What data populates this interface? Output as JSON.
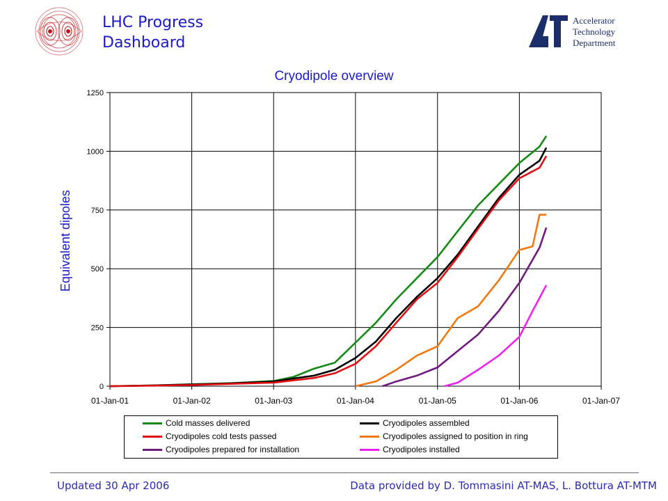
{
  "header": {
    "title_line1": "LHC Progress",
    "title_line2": "Dashboard",
    "dept_line1": "Accelerator",
    "dept_line2": "Technology",
    "dept_line3": "Department"
  },
  "footer": {
    "updated": "Updated 30 Apr 2006",
    "credits": "Data provided by  D. Tommasini  AT-MAS, L. Bottura AT-MTM"
  },
  "colors": {
    "title_blue": "#1a1acc",
    "green": "#138a13",
    "black": "#000000",
    "red": "#e01010",
    "orange": "#f07810",
    "purple": "#701a80",
    "magenta": "#ee22ee"
  },
  "chart_data": {
    "type": "line",
    "title": "Cryodipole overview",
    "ylabel": "Equivalent dipoles",
    "xlabel": "",
    "ylim": [
      0,
      1250
    ],
    "yticks": [
      0,
      250,
      500,
      750,
      1000,
      1250
    ],
    "xlim": [
      "2001-01-01",
      "2007-01-01"
    ],
    "xticks": [
      "01-Jan-01",
      "01-Jan-02",
      "01-Jan-03",
      "01-Jan-04",
      "01-Jan-05",
      "01-Jan-06",
      "01-Jan-07"
    ],
    "grid": true,
    "legend_position": "bottom",
    "series": [
      {
        "name": "Cold masses delivered",
        "color": "#138a13",
        "x": [
          "2001-01-01",
          "2001-07-01",
          "2002-01-01",
          "2002-07-01",
          "2003-01-01",
          "2003-04-01",
          "2003-07-01",
          "2003-10-01",
          "2004-01-01",
          "2004-04-01",
          "2004-07-01",
          "2004-10-01",
          "2005-01-01",
          "2005-04-01",
          "2005-07-01",
          "2005-10-01",
          "2006-01-01",
          "2006-04-01",
          "2006-05-01"
        ],
        "values": [
          0,
          3,
          8,
          13,
          22,
          40,
          75,
          100,
          185,
          270,
          370,
          460,
          550,
          660,
          770,
          860,
          950,
          1020,
          1065
        ]
      },
      {
        "name": "Cryodipoles assembled",
        "color": "#000000",
        "x": [
          "2001-01-01",
          "2001-07-01",
          "2002-01-01",
          "2002-07-01",
          "2003-01-01",
          "2003-04-01",
          "2003-07-01",
          "2003-10-01",
          "2004-01-01",
          "2004-04-01",
          "2004-07-01",
          "2004-10-01",
          "2005-01-01",
          "2005-04-01",
          "2005-07-01",
          "2005-10-01",
          "2006-01-01",
          "2006-04-01",
          "2006-05-01"
        ],
        "values": [
          0,
          3,
          7,
          12,
          20,
          33,
          45,
          70,
          120,
          190,
          290,
          380,
          460,
          560,
          680,
          800,
          900,
          960,
          1015
        ]
      },
      {
        "name": "Cryodipoles cold tests passed",
        "color": "#e01010",
        "x": [
          "2001-01-01",
          "2001-07-01",
          "2002-01-01",
          "2002-07-01",
          "2003-01-01",
          "2003-04-01",
          "2003-07-01",
          "2003-10-01",
          "2004-01-01",
          "2004-04-01",
          "2004-07-01",
          "2004-10-01",
          "2005-01-01",
          "2005-04-01",
          "2005-07-01",
          "2005-10-01",
          "2006-01-01",
          "2006-04-01",
          "2006-05-01"
        ],
        "values": [
          0,
          2,
          5,
          10,
          15,
          25,
          35,
          55,
          95,
          170,
          270,
          370,
          440,
          550,
          670,
          790,
          885,
          930,
          980
        ]
      },
      {
        "name": "Cryodipoles assigned to position in ring",
        "color": "#f07810",
        "x": [
          "2004-01-01",
          "2004-04-01",
          "2004-07-01",
          "2004-10-01",
          "2005-01-01",
          "2005-04-01",
          "2005-07-01",
          "2005-10-01",
          "2006-01-01",
          "2006-03-01",
          "2006-04-01",
          "2006-05-01"
        ],
        "values": [
          0,
          20,
          70,
          130,
          170,
          290,
          340,
          450,
          580,
          595,
          730,
          730
        ]
      },
      {
        "name": "Cryodipoles prepared for installation",
        "color": "#701a80",
        "x": [
          "2004-05-01",
          "2004-07-01",
          "2004-10-01",
          "2005-01-01",
          "2005-04-01",
          "2005-07-01",
          "2005-10-01",
          "2006-01-01",
          "2006-04-01",
          "2006-05-01"
        ],
        "values": [
          0,
          20,
          45,
          80,
          150,
          220,
          320,
          440,
          590,
          675
        ]
      },
      {
        "name": "Cryodipoles installed",
        "color": "#ee22ee",
        "x": [
          "2005-02-01",
          "2005-04-01",
          "2005-07-01",
          "2005-10-01",
          "2006-01-01",
          "2006-03-01",
          "2006-05-01"
        ],
        "values": [
          0,
          15,
          70,
          130,
          210,
          320,
          430
        ]
      }
    ]
  }
}
